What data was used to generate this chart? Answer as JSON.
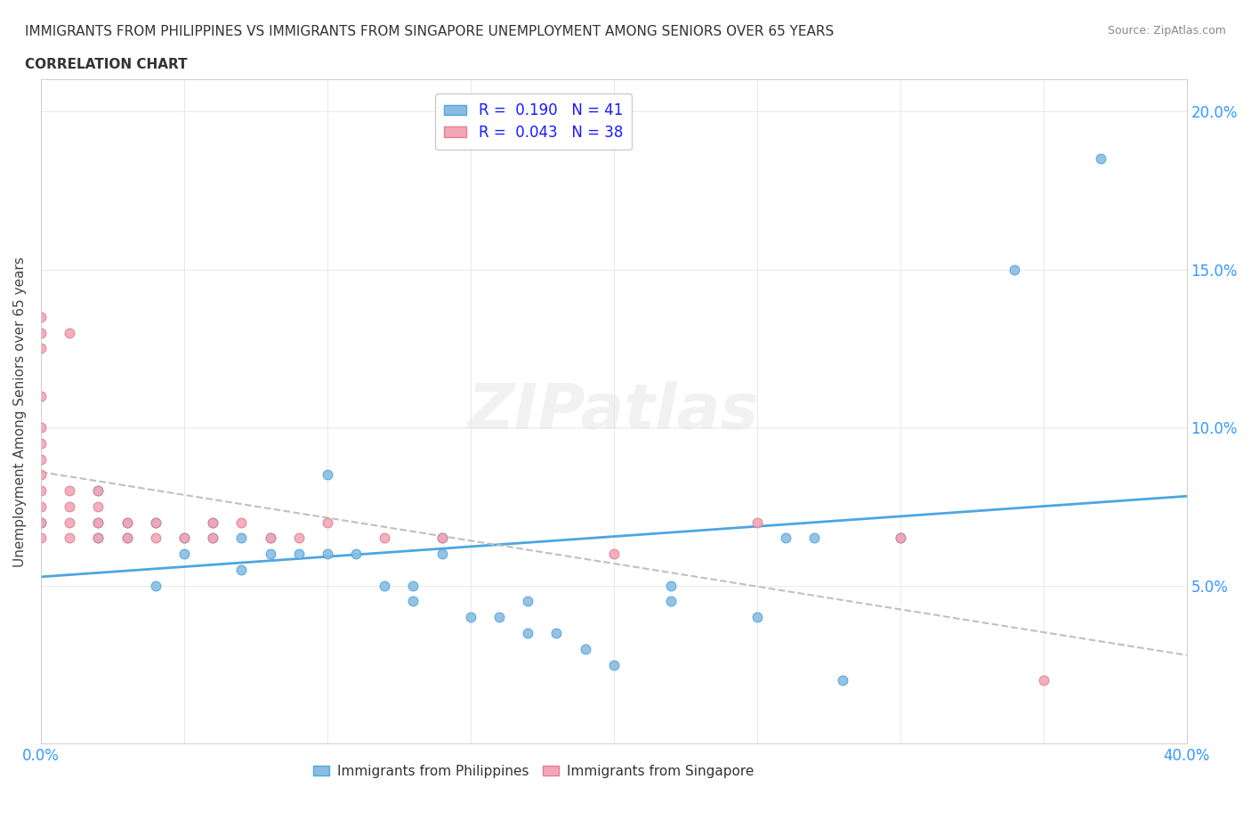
{
  "title_line1": "IMMIGRANTS FROM PHILIPPINES VS IMMIGRANTS FROM SINGAPORE UNEMPLOYMENT AMONG SENIORS OVER 65 YEARS",
  "title_line2": "CORRELATION CHART",
  "source": "Source: ZipAtlas.com",
  "ylabel_label": "Unemployment Among Seniors over 65 years",
  "xlim": [
    0.0,
    0.4
  ],
  "ylim": [
    0.0,
    0.21
  ],
  "xticks": [
    0.0,
    0.05,
    0.1,
    0.15,
    0.2,
    0.25,
    0.3,
    0.35,
    0.4
  ],
  "yticks": [
    0.0,
    0.05,
    0.1,
    0.15,
    0.2
  ],
  "philippines_R": 0.19,
  "philippines_N": 41,
  "singapore_R": 0.043,
  "singapore_N": 38,
  "philippines_color": "#89bde0",
  "singapore_color": "#f4a6b8",
  "philippines_edge_color": "#4da6e0",
  "singapore_edge_color": "#e08090",
  "philippines_line_color": "#4da6e0",
  "singapore_line_color": "#c0c0c0",
  "legend_text_color": "#1a1aff",
  "watermark": "ZIPatlas",
  "philippines_x": [
    0.0,
    0.02,
    0.02,
    0.02,
    0.03,
    0.03,
    0.04,
    0.04,
    0.05,
    0.05,
    0.06,
    0.06,
    0.07,
    0.07,
    0.08,
    0.08,
    0.09,
    0.1,
    0.1,
    0.11,
    0.12,
    0.13,
    0.13,
    0.14,
    0.14,
    0.15,
    0.16,
    0.17,
    0.17,
    0.18,
    0.19,
    0.2,
    0.22,
    0.22,
    0.25,
    0.26,
    0.27,
    0.28,
    0.3,
    0.34,
    0.37
  ],
  "philippines_y": [
    0.07,
    0.065,
    0.07,
    0.08,
    0.065,
    0.07,
    0.05,
    0.07,
    0.06,
    0.065,
    0.065,
    0.07,
    0.055,
    0.065,
    0.06,
    0.065,
    0.06,
    0.085,
    0.06,
    0.06,
    0.05,
    0.05,
    0.045,
    0.06,
    0.065,
    0.04,
    0.04,
    0.035,
    0.045,
    0.035,
    0.03,
    0.025,
    0.045,
    0.05,
    0.04,
    0.065,
    0.065,
    0.02,
    0.065,
    0.15,
    0.185
  ],
  "singapore_x": [
    0.0,
    0.0,
    0.0,
    0.0,
    0.0,
    0.0,
    0.0,
    0.0,
    0.0,
    0.0,
    0.0,
    0.0,
    0.01,
    0.01,
    0.01,
    0.01,
    0.01,
    0.02,
    0.02,
    0.02,
    0.02,
    0.03,
    0.03,
    0.04,
    0.04,
    0.05,
    0.06,
    0.06,
    0.07,
    0.08,
    0.09,
    0.1,
    0.12,
    0.14,
    0.2,
    0.25,
    0.3,
    0.35
  ],
  "singapore_y": [
    0.065,
    0.07,
    0.075,
    0.08,
    0.085,
    0.09,
    0.095,
    0.1,
    0.11,
    0.125,
    0.13,
    0.135,
    0.065,
    0.07,
    0.075,
    0.08,
    0.13,
    0.065,
    0.07,
    0.075,
    0.08,
    0.065,
    0.07,
    0.065,
    0.07,
    0.065,
    0.065,
    0.07,
    0.07,
    0.065,
    0.065,
    0.07,
    0.065,
    0.065,
    0.06,
    0.07,
    0.065,
    0.02
  ]
}
